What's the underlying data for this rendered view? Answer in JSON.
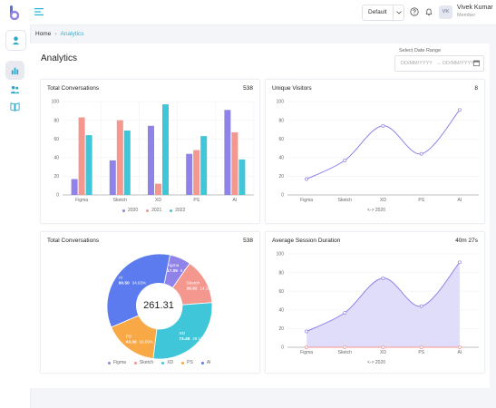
{
  "header": {
    "select_value": "Default",
    "user_name": "Vivek Kumar",
    "user_role": "Member",
    "avatar_initials": "VK"
  },
  "breadcrumb": {
    "home": "Home",
    "current": "Analytics"
  },
  "page": {
    "title": "Analytics",
    "date_range_label": "Select Date Range",
    "date_from_placeholder": "DD/MM/YYYY",
    "date_to_placeholder": "DD/MM/YYYY",
    "date_arrow": "→"
  },
  "icons": {
    "logo": "logo-icon",
    "menu": "hamburger-icon",
    "help": "question-icon",
    "bell": "bell-icon",
    "calendar": "calendar-icon",
    "sidebar": [
      "user-icon",
      "analytics-icon",
      "users-icon",
      "book-icon"
    ]
  },
  "colors": {
    "accent": "#24b5d6",
    "purple": "#8f82e8",
    "salmon": "#f4978e",
    "cyan": "#40c6d9",
    "orange": "#f8a945",
    "blue": "#5b7bee"
  },
  "cards": {
    "total_conversations_bar": {
      "title": "Total Conversations",
      "value": "538"
    },
    "unique_visitors": {
      "title": "Unique Visitors",
      "value": "8"
    },
    "total_conversations_pie": {
      "title": "Total Conversations",
      "value": "538"
    },
    "avg_session": {
      "title": "Average Session Duration",
      "value": "40m 27s"
    }
  },
  "chart_data": [
    {
      "type": "bar",
      "categories": [
        "Figma",
        "Sketch",
        "XD",
        "PS",
        "AI"
      ],
      "series": [
        {
          "name": "2020",
          "values": [
            17,
            37,
            74,
            44,
            91
          ],
          "color": "#8f82e8"
        },
        {
          "name": "2021",
          "values": [
            83,
            80,
            12,
            48,
            67
          ],
          "color": "#f4978e"
        },
        {
          "name": "2022",
          "values": [
            64,
            69,
            97,
            63,
            38
          ],
          "color": "#40c6d9"
        }
      ],
      "yticks": [
        0,
        20,
        40,
        60,
        80,
        100
      ],
      "ylim": [
        0,
        100
      ]
    },
    {
      "type": "line",
      "categories": [
        "Figma",
        "Sketch",
        "XD",
        "PS",
        "AI"
      ],
      "series": [
        {
          "name": "2020",
          "values": [
            17,
            37,
            74,
            44,
            91
          ],
          "color": "#8f82e8"
        }
      ],
      "yticks": [
        0,
        20,
        40,
        60,
        80,
        100
      ],
      "ylim": [
        0,
        100
      ],
      "legend_text": "<-> 2020"
    },
    {
      "type": "pie",
      "center_text": "261.31",
      "slices": [
        {
          "name": "Figma",
          "value": 17.05,
          "pct": "6.52%",
          "color": "#8f82e8"
        },
        {
          "name": "Sketch",
          "value": 36.92,
          "pct": "14.13%",
          "color": "#f4978e"
        },
        {
          "name": "XD",
          "value": 73.48,
          "pct": "28.12%",
          "color": "#40c6d9"
        },
        {
          "name": "PS",
          "value": 43.36,
          "pct": "16.59%",
          "color": "#f8a945"
        },
        {
          "name": "AI",
          "value": 90.5,
          "pct": "34.63%",
          "color": "#5b7bee"
        }
      ]
    },
    {
      "type": "area",
      "categories": [
        "Figma",
        "Sketch",
        "XD",
        "PS",
        "AI"
      ],
      "series": [
        {
          "name": "2020",
          "values": [
            17,
            37,
            74,
            44,
            91
          ],
          "color": "#8f82e8"
        },
        {
          "name": "",
          "values": [
            0,
            0,
            0,
            0,
            0
          ],
          "color": "#f4978e"
        }
      ],
      "yticks": [
        0,
        20,
        40,
        60,
        80,
        100
      ],
      "ylim": [
        0,
        100
      ],
      "legend_text": "<-> 2020"
    }
  ]
}
